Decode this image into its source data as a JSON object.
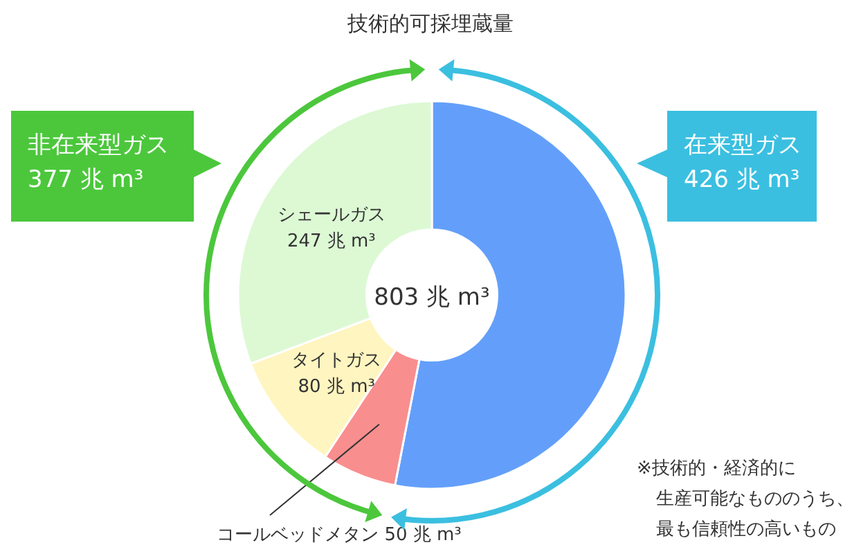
{
  "chart_data": {
    "type": "donut",
    "title": "技術的可採埋蔵量",
    "categories": [
      "在来型ガス",
      "コールベッドメタン",
      "タイトガス",
      "シェールガス"
    ],
    "values": [
      426,
      50,
      80,
      247
    ],
    "colors": [
      "#639ffa",
      "#f98e8e",
      "#fff5c0",
      "#dcf9d4"
    ],
    "value_labels": [
      "426 兆 m³",
      "50 兆 m³",
      "80 兆 m³",
      "247 兆 m³"
    ],
    "annotations": [
      "803 兆 m³",
      "非在来型ガス 377 兆 m³",
      "※技術的・経済的に",
      "生産可能なもののうち、",
      "最も信頼性の高いもの"
    ]
  }
}
